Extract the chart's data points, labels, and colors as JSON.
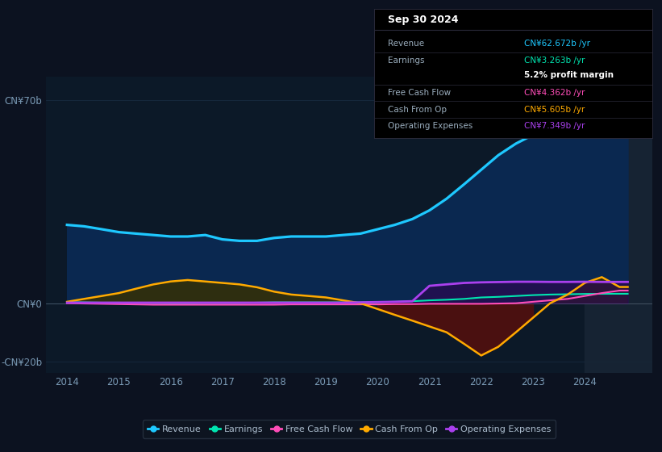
{
  "bg_color": "#0c1220",
  "plot_bg_color": "#0c1928",
  "grid_color": "#1a2e45",
  "years": [
    2014.0,
    2014.33,
    2014.67,
    2015.0,
    2015.33,
    2015.67,
    2016.0,
    2016.33,
    2016.67,
    2017.0,
    2017.33,
    2017.67,
    2018.0,
    2018.33,
    2018.67,
    2019.0,
    2019.33,
    2019.67,
    2020.0,
    2020.33,
    2020.67,
    2021.0,
    2021.33,
    2021.67,
    2022.0,
    2022.33,
    2022.67,
    2023.0,
    2023.33,
    2023.67,
    2024.0,
    2024.33,
    2024.67,
    2024.83
  ],
  "revenue": [
    27,
    26.5,
    25.5,
    24.5,
    24.0,
    23.5,
    23.0,
    23.0,
    23.5,
    22.0,
    21.5,
    21.5,
    22.5,
    23.0,
    23.0,
    23.0,
    23.5,
    24.0,
    25.5,
    27.0,
    29.0,
    32.0,
    36.0,
    41.0,
    46.0,
    51.0,
    55.0,
    58.0,
    60.0,
    62.0,
    63.5,
    65.0,
    68.0,
    62.672
  ],
  "earnings": [
    0.4,
    0.3,
    0.2,
    0.2,
    0.1,
    0.1,
    0.0,
    0.0,
    0.1,
    0.1,
    0.1,
    0.2,
    0.3,
    0.3,
    0.3,
    0.3,
    0.3,
    0.3,
    0.4,
    0.5,
    0.7,
    1.0,
    1.2,
    1.5,
    2.0,
    2.2,
    2.5,
    2.8,
    3.0,
    3.1,
    3.2,
    3.25,
    3.263,
    3.263
  ],
  "free_cash_flow": [
    0.0,
    -0.1,
    -0.2,
    -0.3,
    -0.4,
    -0.5,
    -0.5,
    -0.5,
    -0.5,
    -0.5,
    -0.5,
    -0.5,
    -0.5,
    -0.4,
    -0.4,
    -0.4,
    -0.4,
    -0.4,
    -0.4,
    -0.3,
    -0.3,
    -0.2,
    -0.2,
    -0.2,
    -0.2,
    -0.1,
    0.0,
    0.5,
    1.0,
    1.5,
    2.5,
    3.5,
    4.362,
    4.362
  ],
  "cash_from_op": [
    0.5,
    1.5,
    2.5,
    3.5,
    5.0,
    6.5,
    7.5,
    8.0,
    7.5,
    7.0,
    6.5,
    5.5,
    4.0,
    3.0,
    2.5,
    2.0,
    1.0,
    0.0,
    -2.0,
    -4.0,
    -6.0,
    -8.0,
    -10.0,
    -14.0,
    -18.0,
    -15.0,
    -10.0,
    -5.0,
    0.0,
    3.0,
    7.0,
    9.0,
    5.605,
    5.605
  ],
  "operating_expenses": [
    0.2,
    0.2,
    0.2,
    0.2,
    0.2,
    0.2,
    0.2,
    0.2,
    0.2,
    0.2,
    0.2,
    0.2,
    0.2,
    0.2,
    0.2,
    0.2,
    0.2,
    0.3,
    0.4,
    0.5,
    0.7,
    6.0,
    6.5,
    7.0,
    7.2,
    7.3,
    7.4,
    7.4,
    7.35,
    7.35,
    7.4,
    7.349,
    7.349,
    7.349
  ],
  "revenue_color": "#1ec8ff",
  "earnings_color": "#00e5b0",
  "free_cash_flow_color": "#ff4db8",
  "cash_from_op_color": "#ffaa00",
  "operating_expenses_color": "#aa40ee",
  "ylim_min": -24,
  "ylim_max": 78,
  "ytick_values": [
    -20,
    0,
    70
  ],
  "ytick_labels": [
    "-CN¥20b",
    "CN¥0",
    "CN¥70b"
  ],
  "xtick_years": [
    2014,
    2015,
    2016,
    2017,
    2018,
    2019,
    2020,
    2021,
    2022,
    2023,
    2024
  ],
  "tooltip_date": "Sep 30 2024",
  "tooltip_rows": [
    {
      "label": "Revenue",
      "value": "CN¥62.672b /yr",
      "value_color": "#1ec8ff",
      "sub": null
    },
    {
      "label": "Earnings",
      "value": "CN¥3.263b /yr",
      "value_color": "#00e5b0",
      "sub": "5.2% profit margin"
    },
    {
      "label": "Free Cash Flow",
      "value": "CN¥4.362b /yr",
      "value_color": "#ff4db8",
      "sub": null
    },
    {
      "label": "Cash From Op",
      "value": "CN¥5.605b /yr",
      "value_color": "#ffaa00",
      "sub": null
    },
    {
      "label": "Operating Expenses",
      "value": "CN¥7.349b /yr",
      "value_color": "#aa40ee",
      "sub": null
    }
  ],
  "legend_items": [
    {
      "label": "Revenue",
      "color": "#1ec8ff"
    },
    {
      "label": "Earnings",
      "color": "#00e5b0"
    },
    {
      "label": "Free Cash Flow",
      "color": "#ff4db8"
    },
    {
      "label": "Cash From Op",
      "color": "#ffaa00"
    },
    {
      "label": "Operating Expenses",
      "color": "#aa40ee"
    }
  ]
}
